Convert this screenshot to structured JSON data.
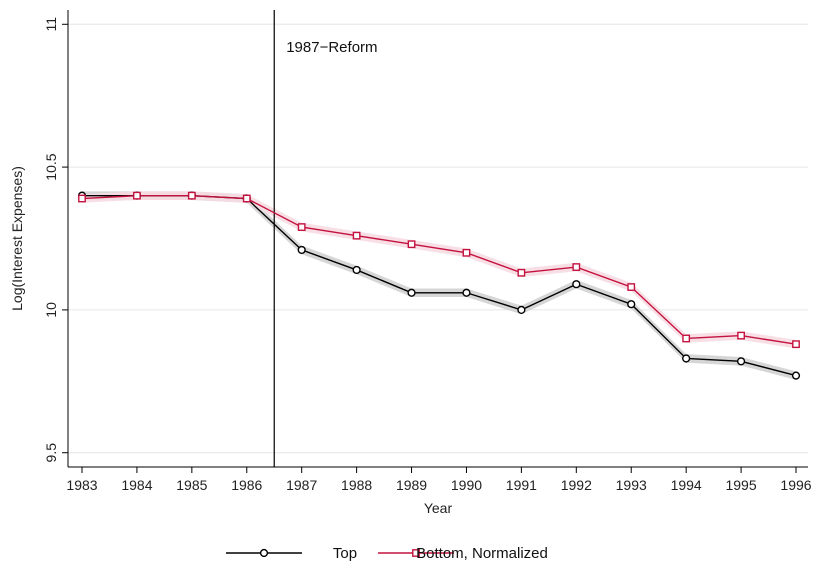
{
  "chart_data": {
    "type": "line",
    "xlabel": "Year",
    "ylabel": "Log(Interest Expenses)",
    "x": [
      1983,
      1984,
      1985,
      1986,
      1987,
      1988,
      1989,
      1990,
      1991,
      1992,
      1993,
      1994,
      1995,
      1996
    ],
    "xticks": [
      "1983",
      "1984",
      "1985",
      "1986",
      "1987",
      "1988",
      "1989",
      "1990",
      "1991",
      "1992",
      "1993",
      "1994",
      "1995",
      "1996"
    ],
    "ylim": [
      9.45,
      11.05
    ],
    "yticks": [
      9.5,
      10,
      10.5,
      11
    ],
    "ytick_labels": [
      "9.5",
      "10",
      "10.5",
      "11"
    ],
    "grid": true,
    "legend_position": "bottom",
    "annotation": {
      "x": 1986.5,
      "label": "1987−Reform"
    },
    "series": [
      {
        "name": "Top",
        "color": "#000000",
        "marker": "circle",
        "values": [
          10.4,
          10.4,
          10.4,
          10.39,
          10.21,
          10.14,
          10.06,
          10.06,
          10.0,
          10.09,
          10.02,
          9.83,
          9.82,
          9.77
        ],
        "ci_halfwidth": 0.015
      },
      {
        "name": "Bottom, Normalized",
        "color": "#c4123f",
        "marker": "square",
        "values": [
          10.39,
          10.4,
          10.4,
          10.39,
          10.29,
          10.26,
          10.23,
          10.2,
          10.13,
          10.15,
          10.08,
          9.9,
          9.91,
          9.88
        ],
        "ci_halfwidth": 0.015
      }
    ]
  }
}
